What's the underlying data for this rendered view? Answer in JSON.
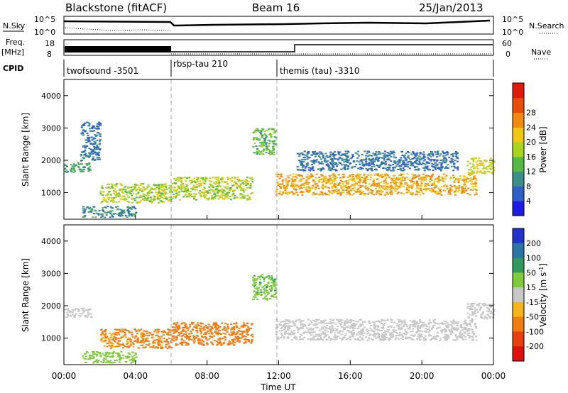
{
  "header": {
    "title": "Blackstone (fitACF)",
    "beam": "Beam 16",
    "date": "25/Jan/2013"
  },
  "strips": {
    "nsky_label": "N.Sky",
    "nsearch_label": "N.Search",
    "noise_ticks": [
      "10^5",
      "10^0"
    ],
    "freq_label": "Freq.",
    "freq_unit": "[MHz]",
    "freq_ticks": [
      "18",
      "8"
    ],
    "nave_label": "Nave",
    "nave_ticks": [
      "60",
      "0"
    ],
    "cpid_label": "CPID",
    "cpid_segments": [
      {
        "label": "twofsound -3501",
        "start_h": 0,
        "end_h": 6
      },
      {
        "label": "rbsp-tau 210",
        "start_h": 6,
        "end_h": 11.9
      },
      {
        "label": "themis (tau) -3310",
        "start_h": 11.9,
        "end_h": 24
      }
    ]
  },
  "chart_data": [
    {
      "type": "heatmap",
      "title": "",
      "xlabel": "Time UT",
      "ylabel": "Slant Range [km]",
      "xlim": [
        0,
        24
      ],
      "ylim": [
        180,
        4500
      ],
      "x_ticks": [
        "00:00",
        "04:00",
        "08:00",
        "12:00",
        "16:00",
        "20:00",
        "00:00"
      ],
      "y_ticks": [
        "1000",
        "2000",
        "3000",
        "4000"
      ],
      "colorbar": {
        "label": "Power [dB]",
        "ticks": [
          "4",
          "8",
          "12",
          "16",
          "20",
          "24",
          "28"
        ],
        "colors": [
          "#1c1ce6",
          "#2d5fc7",
          "#3a8f8a",
          "#54b845",
          "#a8d41e",
          "#f2c614",
          "#f08a10",
          "#e84d0c",
          "#e01b0b"
        ]
      },
      "echo_bands": [
        {
          "x": [
            0,
            1.5
          ],
          "y": [
            1650,
            1950
          ],
          "value": 12
        },
        {
          "x": [
            0.9,
            2.0
          ],
          "y": [
            2000,
            3200
          ],
          "value": 8
        },
        {
          "x": [
            1.0,
            4.0
          ],
          "y": [
            250,
            600
          ],
          "value": 10
        },
        {
          "x": [
            2.0,
            6.0
          ],
          "y": [
            700,
            1300
          ],
          "value": 18
        },
        {
          "x": [
            6.0,
            10.5
          ],
          "y": [
            800,
            1500
          ],
          "value": 18
        },
        {
          "x": [
            10.5,
            11.8
          ],
          "y": [
            2200,
            3000
          ],
          "value": 14
        },
        {
          "x": [
            11.8,
            23.0
          ],
          "y": [
            950,
            1600
          ],
          "value": 24
        },
        {
          "x": [
            13.0,
            22.0
          ],
          "y": [
            1700,
            2300
          ],
          "value": 8
        },
        {
          "x": [
            22.5,
            24.0
          ],
          "y": [
            1600,
            2100
          ],
          "value": 20
        }
      ]
    },
    {
      "type": "heatmap",
      "title": "",
      "xlabel": "Time UT",
      "ylabel": "Slant Range [km]",
      "xlim": [
        0,
        24
      ],
      "ylim": [
        180,
        4500
      ],
      "x_ticks": [
        "00:00",
        "04:00",
        "08:00",
        "12:00",
        "16:00",
        "20:00",
        "00:00"
      ],
      "y_ticks": [
        "1000",
        "2000",
        "3000",
        "4000"
      ],
      "colorbar": {
        "label": "Velocity [m s-1]",
        "label_base": "Velocity [m s",
        "label_exp": "-1",
        "label_end": "]",
        "ticks": [
          "200",
          "100",
          "50",
          "15",
          "-15",
          "-50",
          "-100",
          "-200"
        ],
        "colors": [
          "#2233cc",
          "#2b74a8",
          "#2f9a5c",
          "#7fcc3a",
          "#c8c8c8",
          "#f5b51a",
          "#f07d12",
          "#e8400e",
          "#e0100c"
        ]
      },
      "echo_bands": [
        {
          "x": [
            0,
            1.5
          ],
          "y": [
            1650,
            1950
          ],
          "value": 0
        },
        {
          "x": [
            1.0,
            4.0
          ],
          "y": [
            250,
            600
          ],
          "value": 30
        },
        {
          "x": [
            2.0,
            6.0
          ],
          "y": [
            700,
            1300
          ],
          "value": -60
        },
        {
          "x": [
            6.0,
            10.5
          ],
          "y": [
            800,
            1500
          ],
          "value": -70
        },
        {
          "x": [
            10.5,
            11.8
          ],
          "y": [
            2200,
            3000
          ],
          "value": 40
        },
        {
          "x": [
            11.8,
            23.0
          ],
          "y": [
            950,
            1600
          ],
          "value": 0
        },
        {
          "x": [
            22.5,
            24.0
          ],
          "y": [
            1600,
            2100
          ],
          "value": 0
        }
      ]
    }
  ]
}
